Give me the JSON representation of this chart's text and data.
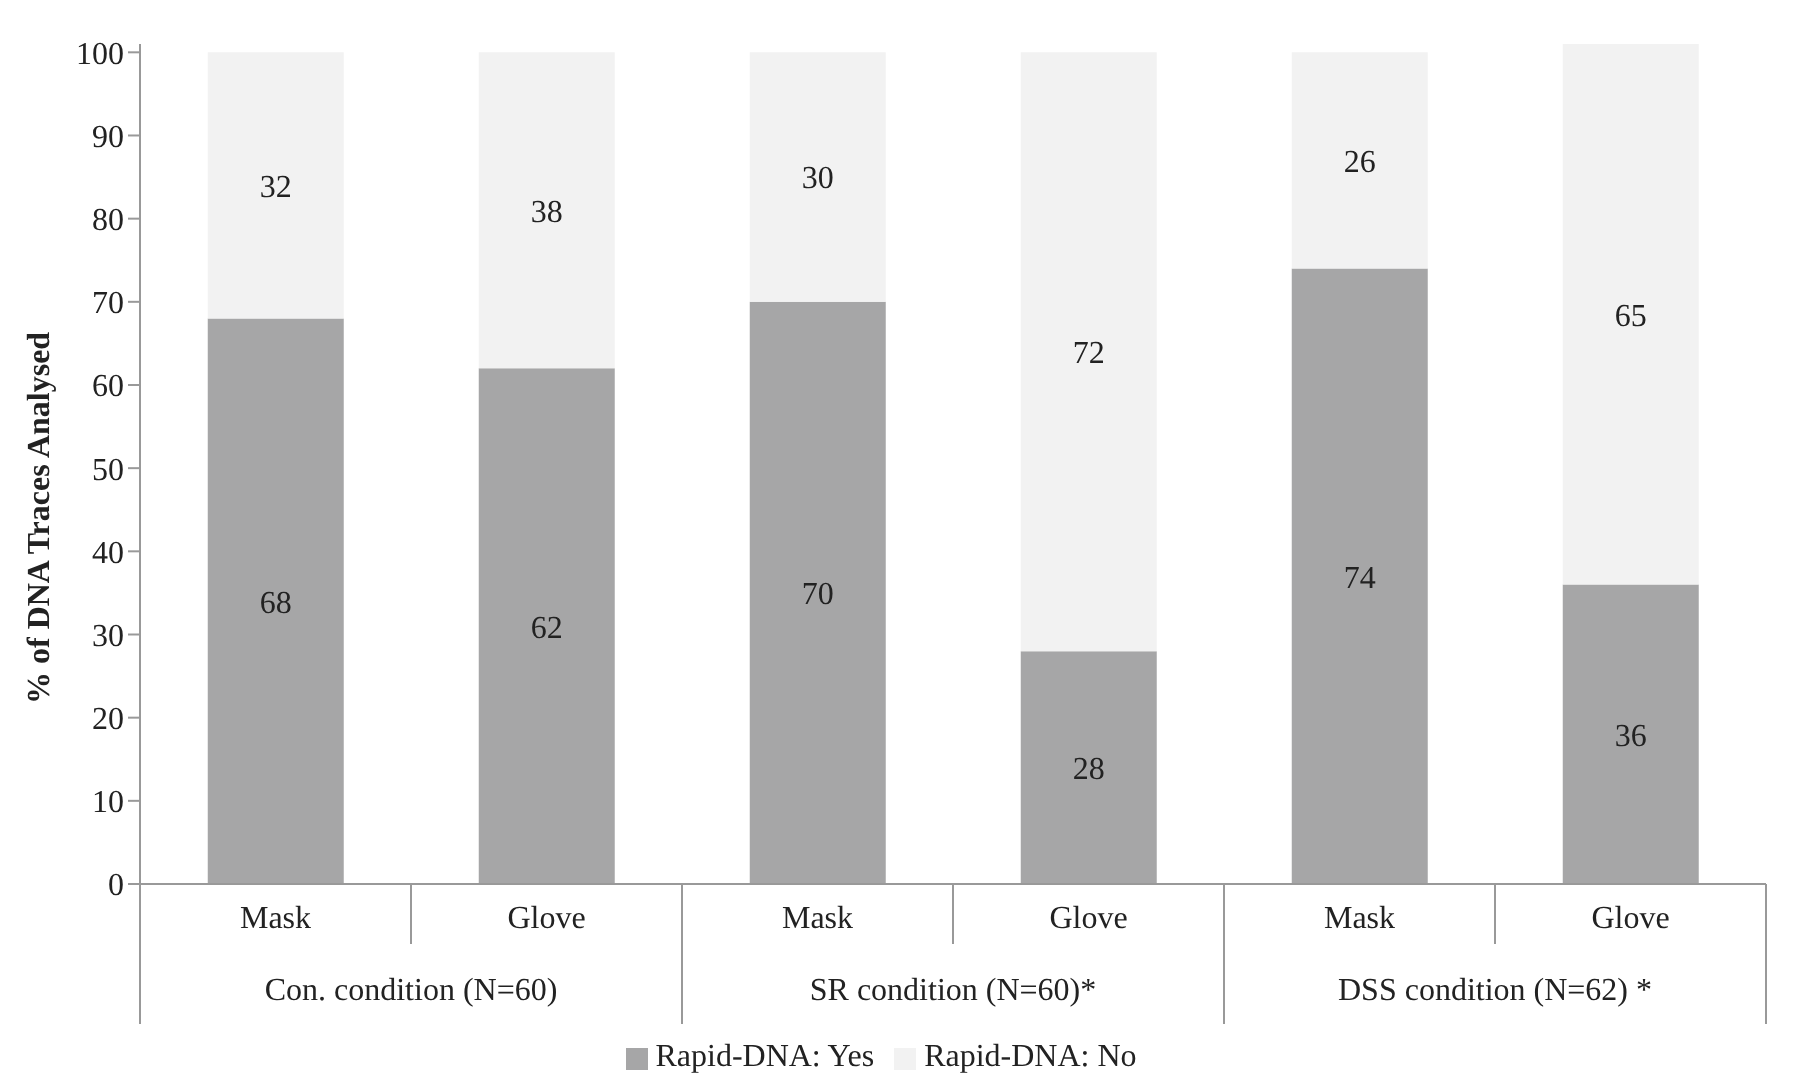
{
  "chart_data": {
    "type": "bar",
    "stacked": true,
    "ylabel": "% of DNA Traces Analysed",
    "categories": [
      "Mask",
      "Glove",
      "Mask",
      "Glove",
      "Mask",
      "Glove"
    ],
    "annotations": [
      "Con. condition (N=60)",
      "SR condition (N=60)*",
      "DSS condition (N=62) *"
    ],
    "series": [
      {
        "name": "Rapid-DNA:  Yes",
        "color": "#a6a6a7",
        "values": [
          68,
          62,
          70,
          28,
          74,
          36
        ]
      },
      {
        "name": "Rapid-DNA:  No",
        "color": "#f2f2f2",
        "values": [
          32,
          38,
          30,
          72,
          26,
          65
        ]
      }
    ],
    "ylim": [
      0,
      101
    ],
    "yticks": [
      0,
      10,
      20,
      30,
      40,
      50,
      60,
      70,
      80,
      90,
      100
    ],
    "data_labels": true,
    "grid": false,
    "legend": "bottom"
  }
}
